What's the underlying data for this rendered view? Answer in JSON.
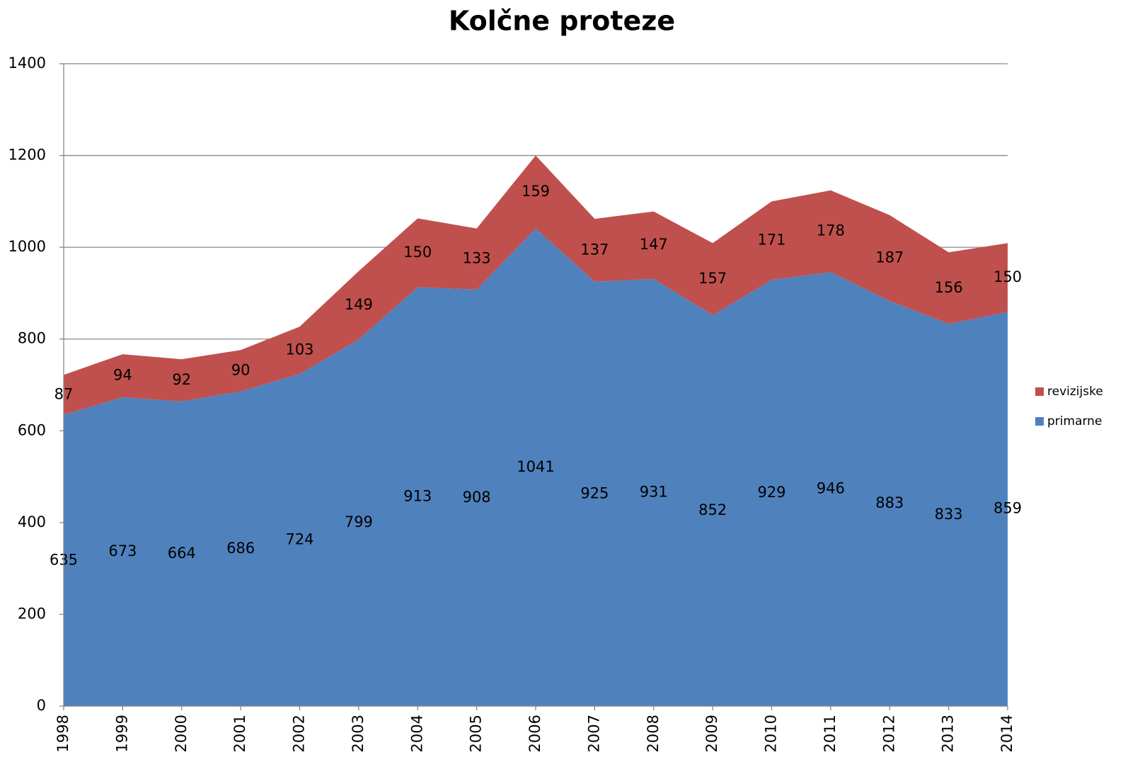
{
  "chart_data": {
    "type": "area",
    "stacked": true,
    "title": "Kolčne proteze",
    "categories": [
      "1998",
      "1999",
      "2000",
      "2001",
      "2002",
      "2003",
      "2004",
      "2005",
      "2006",
      "2007",
      "2008",
      "2009",
      "2010",
      "2011",
      "2012",
      "2013",
      "2014"
    ],
    "series": [
      {
        "name": "primarne",
        "color": "#4f81bd",
        "values": [
          635,
          673,
          664,
          686,
          724,
          799,
          913,
          908,
          1041,
          925,
          931,
          852,
          929,
          946,
          883,
          833,
          859
        ]
      },
      {
        "name": "revizijske",
        "color": "#c0504d",
        "values": [
          87,
          94,
          92,
          90,
          103,
          149,
          150,
          133,
          159,
          137,
          147,
          157,
          171,
          178,
          187,
          156,
          150
        ]
      }
    ],
    "ylim": [
      0,
      1400
    ],
    "yticks": [
      0,
      200,
      400,
      600,
      800,
      1000,
      1200,
      1400
    ],
    "grid": true,
    "legend": "right"
  }
}
